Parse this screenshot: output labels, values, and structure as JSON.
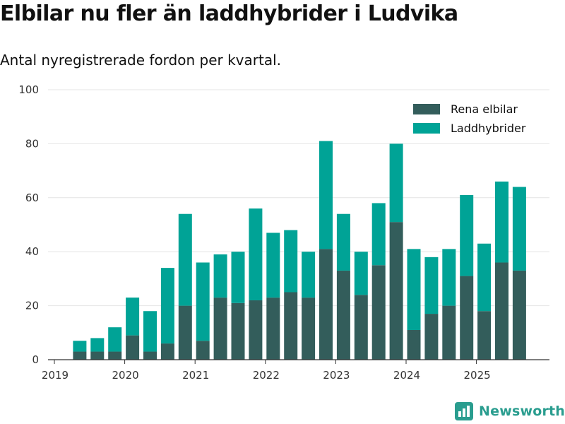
{
  "title": "Elbilar nu fler än laddhybrider i Ludvika",
  "subtitle": "Antal nyregistrerade fordon per kvartal.",
  "brand": {
    "name": "Newsworthy",
    "icon": "newsworthy-logo-icon"
  },
  "colors": {
    "elbilar": "#335d5b",
    "laddhybrider": "#00a396",
    "grid": "#e4e4e4",
    "axis": "#333333",
    "brand": "#2a9d8f"
  },
  "chart_data": {
    "type": "bar",
    "stacked": true,
    "title": "Elbilar nu fler än laddhybrider i Ludvika",
    "subtitle": "Antal nyregistrerade fordon per kvartal.",
    "xlabel": "",
    "ylabel": "",
    "ylim": [
      0,
      100
    ],
    "yticks": [
      0,
      20,
      40,
      60,
      80,
      100
    ],
    "grid": true,
    "legend_position": "top-right",
    "xticks": [
      {
        "label": "2019",
        "at": 0
      },
      {
        "label": "2020",
        "at": 4
      },
      {
        "label": "2021",
        "at": 8
      },
      {
        "label": "2022",
        "at": 12
      },
      {
        "label": "2023",
        "at": 16
      },
      {
        "label": "2024",
        "at": 20
      },
      {
        "label": "2025",
        "at": 24
      }
    ],
    "categories": [
      "2019 Q1",
      "2019 Q2",
      "2019 Q3",
      "2019 Q4",
      "2020 Q1",
      "2020 Q2",
      "2020 Q3",
      "2020 Q4",
      "2021 Q1",
      "2021 Q2",
      "2021 Q3",
      "2021 Q4",
      "2022 Q1",
      "2022 Q2",
      "2022 Q3",
      "2022 Q4",
      "2023 Q1",
      "2023 Q2",
      "2023 Q3",
      "2023 Q4",
      "2024 Q1",
      "2024 Q2",
      "2024 Q3",
      "2024 Q4",
      "2025 Q1",
      "2025 Q2",
      "2025 Q3"
    ],
    "series": [
      {
        "name": "Rena elbilar",
        "color": "#335d5b",
        "values": [
          0,
          3,
          3,
          3,
          9,
          3,
          6,
          20,
          7,
          23,
          21,
          22,
          23,
          25,
          23,
          41,
          33,
          24,
          35,
          51,
          11,
          17,
          20,
          31,
          18,
          36,
          33
        ]
      },
      {
        "name": "Laddhybrider",
        "color": "#00a396",
        "values": [
          0,
          4,
          5,
          9,
          14,
          15,
          28,
          34,
          29,
          16,
          19,
          34,
          24,
          23,
          17,
          40,
          21,
          16,
          23,
          29,
          30,
          21,
          21,
          30,
          25,
          30,
          31
        ]
      }
    ]
  }
}
